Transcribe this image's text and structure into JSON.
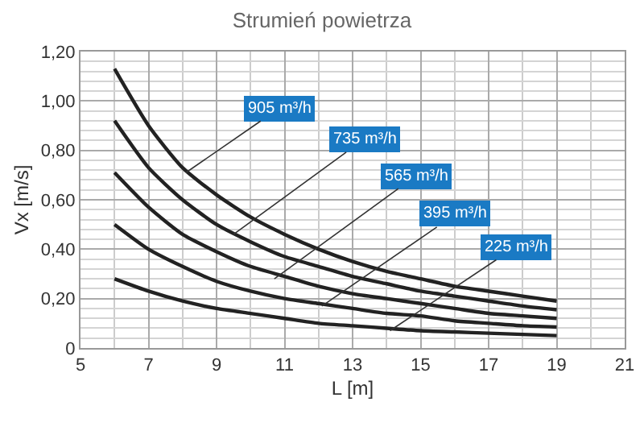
{
  "chart_data": {
    "type": "line",
    "title": "Strumień powietrza",
    "xlabel": "L [m]",
    "ylabel": "Vx [m/s]",
    "x": [
      6,
      7,
      8,
      9,
      10,
      11,
      12,
      13,
      14,
      15,
      16,
      17,
      18,
      19
    ],
    "series": [
      {
        "color": "#222222",
        "values": [
          1.13,
          0.9,
          0.73,
          0.62,
          0.53,
          0.46,
          0.4,
          0.35,
          0.31,
          0.28,
          0.25,
          0.23,
          0.21,
          0.19
        ]
      },
      {
        "color": "#222222",
        "values": [
          0.92,
          0.73,
          0.6,
          0.5,
          0.43,
          0.37,
          0.33,
          0.29,
          0.26,
          0.23,
          0.21,
          0.19,
          0.17,
          0.155
        ]
      },
      {
        "color": "#222222",
        "values": [
          0.71,
          0.57,
          0.46,
          0.39,
          0.33,
          0.29,
          0.25,
          0.22,
          0.2,
          0.18,
          0.16,
          0.14,
          0.13,
          0.12
        ]
      },
      {
        "color": "#222222",
        "values": [
          0.5,
          0.4,
          0.33,
          0.27,
          0.23,
          0.2,
          0.18,
          0.16,
          0.14,
          0.13,
          0.11,
          0.1,
          0.09,
          0.085
        ]
      },
      {
        "color": "#222222",
        "values": [
          0.28,
          0.23,
          0.19,
          0.16,
          0.14,
          0.12,
          0.1,
          0.09,
          0.08,
          0.07,
          0.065,
          0.06,
          0.055,
          0.05
        ]
      }
    ],
    "annotations": [
      {
        "text": "905 m³/h",
        "x": 8.1,
        "y": 0.71
      },
      {
        "text": "735 m³/h",
        "x": 9.5,
        "y": 0.46
      },
      {
        "text": "565 m³/h",
        "x": 10.7,
        "y": 0.28
      },
      {
        "text": "395 m³/h",
        "x": 12.1,
        "y": 0.17
      },
      {
        "text": "225 m³/h",
        "x": 14.1,
        "y": 0.07
      }
    ],
    "xlim": [
      5,
      21
    ],
    "xticks": [
      5,
      7,
      9,
      11,
      13,
      15,
      17,
      19,
      21
    ],
    "ylim": [
      0,
      1.2
    ],
    "yticks": [
      0,
      {
        "value": 0.2,
        "label": "0,20"
      },
      {
        "value": 0.4,
        "label": "0,40"
      },
      {
        "value": 0.6,
        "label": "0,60"
      },
      {
        "value": 0.8,
        "label": "0,80"
      },
      {
        "value": 1.0,
        "label": "1,00"
      },
      {
        "value": 1.2,
        "label": "1,20"
      }
    ],
    "grid": true,
    "marker": "none",
    "line_style": "solid"
  }
}
